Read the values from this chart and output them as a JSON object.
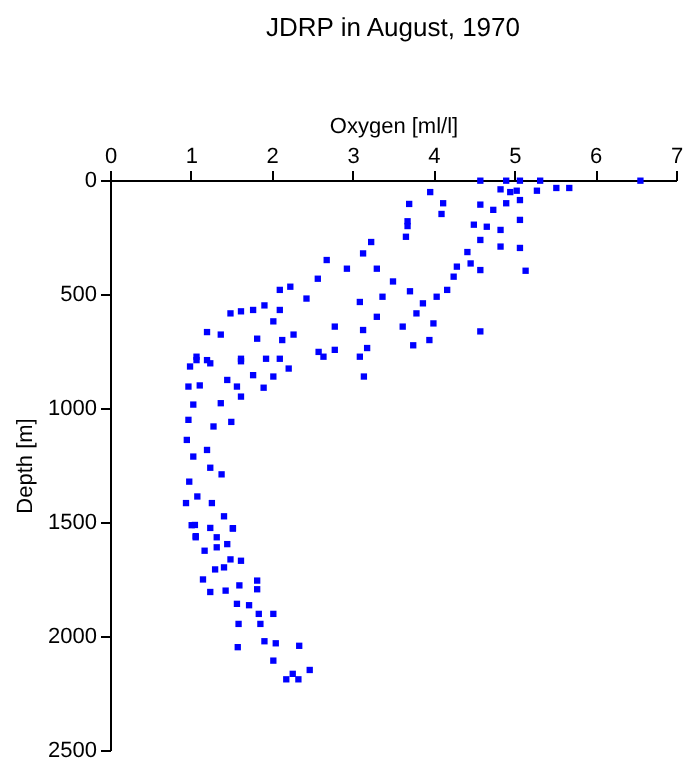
{
  "chart_data": {
    "type": "scatter",
    "title": "JDRP in August, 1970",
    "xlabel": "Oxygen [ml/l]",
    "ylabel": "Depth [m]",
    "xlim": [
      0,
      7
    ],
    "xticks": [
      0,
      1,
      2,
      3,
      4,
      5,
      6,
      7
    ],
    "ylim": [
      2500,
      0
    ],
    "yticks": [
      0,
      500,
      1000,
      1500,
      2000,
      2500
    ],
    "grid": false,
    "marker": "square",
    "legend": false,
    "series": [
      {
        "color": "#0000ff",
        "x": [
          4.58,
          4.9,
          5.07,
          5.32,
          6.56,
          4.83,
          4.95,
          5.03,
          5.28,
          5.52,
          5.68,
          3.96,
          5.07,
          4.9,
          4.58,
          3.7,
          4.12,
          4.74,
          4.1,
          5.07,
          4.5,
          4.66,
          3.68,
          3.68,
          3.66,
          4.83,
          4.58,
          4.83,
          5.07,
          4.42,
          3.23,
          3.13,
          2.68,
          2.93,
          3.3,
          3.5,
          4.29,
          4.46,
          4.58,
          5.14,
          4.25,
          4.17,
          4.04,
          3.71,
          3.87,
          3.79,
          4.0,
          4.58,
          3.95,
          3.62,
          3.13,
          3.3,
          3.37,
          3.09,
          2.78,
          2.57,
          2.1,
          2.23,
          1.91,
          1.62,
          1.77,
          2.1,
          2.43,
          2.02,
          1.49,
          1.2,
          1.37,
          1.82,
          2.13,
          2.27,
          1.07,
          1.62,
          2.64,
          3.09,
          1.07,
          1.2,
          1.62,
          1.93,
          2.1,
          2.58,
          2.78,
          3.18,
          3.75,
          3.14,
          0.99,
          1.24,
          0.97,
          1.11,
          1.45,
          1.57,
          1.77,
          2.02,
          2.21,
          1.03,
          1.37,
          1.62,
          1.9,
          0.97,
          1.28,
          1.5,
          0.95,
          1.2,
          1.03,
          1.24,
          1.38,
          0.98,
          1.08,
          0.94,
          1.26,
          1.41,
          1.05,
          1.52,
          1.06,
          1.01,
          1.24,
          1.52,
          1.32,
          1.06,
          1.32,
          1.17,
          1.45,
          1.62,
          1.49,
          1.41,
          1.3,
          1.15,
          1.6,
          1.82,
          1.82,
          1.24,
          1.43,
          1.57,
          1.72,
          1.84,
          2.02,
          1.86,
          1.59,
          1.91,
          2.05,
          2.34,
          1.58,
          2.02,
          2.26,
          2.47,
          2.18,
          2.33
        ],
        "values": [
          3,
          3,
          3,
          3,
          3,
          41,
          53,
          47,
          47,
          35,
          35,
          53,
          88,
          102,
          108,
          105,
          102,
          131,
          149,
          175,
          196,
          205,
          181,
          202,
          249,
          219,
          263,
          292,
          298,
          316,
          272,
          322,
          351,
          389,
          389,
          445,
          380,
          366,
          395,
          398,
          424,
          482,
          512,
          488,
          541,
          585,
          629,
          664,
          702,
          643,
          658,
          600,
          512,
          535,
          643,
          433,
          482,
          468,
          550,
          576,
          570,
          570,
          520,
          620,
          585,
          667,
          678,
          696,
          702,
          678,
          790,
          795,
          775,
          775,
          775,
          790,
          784,
          784,
          784,
          754,
          745,
          737,
          725,
          862,
          818,
          804,
          906,
          901,
          877,
          906,
          856,
          862,
          827,
          985,
          979,
          950,
          911,
          1052,
          1081,
          1061,
          1140,
          1184,
          1213,
          1262,
          1291,
          1323,
          1388,
          1417,
          1417,
          1475,
          1513,
          1527,
          1562,
          1514,
          1526,
          1529,
          1567,
          1567,
          1611,
          1626,
          1597,
          1670,
          1664,
          1699,
          1708,
          1752,
          1778,
          1757,
          1795,
          1807,
          1801,
          1859,
          1865,
          1903,
          1903,
          1947,
          1947,
          2023,
          2032,
          2043,
          2049,
          2108,
          2166,
          2149,
          2190,
          2190
        ]
      }
    ]
  }
}
